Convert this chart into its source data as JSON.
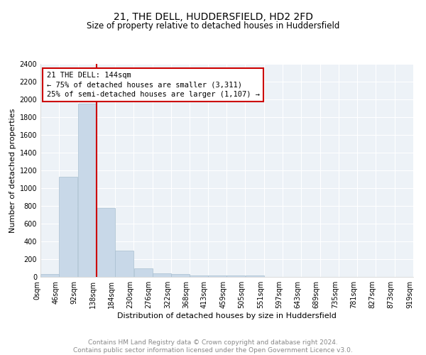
{
  "title": "21, THE DELL, HUDDERSFIELD, HD2 2FD",
  "subtitle": "Size of property relative to detached houses in Huddersfield",
  "xlabel": "Distribution of detached houses by size in Huddersfield",
  "ylabel": "Number of detached properties",
  "bar_color": "#c8d8e8",
  "bar_edge_color": "#a8bfd0",
  "vline_x": 138,
  "vline_color": "#cc0000",
  "annotation_line1": "21 THE DELL: 144sqm",
  "annotation_line2": "← 75% of detached houses are smaller (3,311)",
  "annotation_line3": "25% of semi-detached houses are larger (1,107) →",
  "annotation_box_color": "#cc0000",
  "bin_edges": [
    0,
    46,
    92,
    138,
    184,
    230,
    276,
    322,
    368,
    413,
    459,
    505,
    551,
    597,
    643,
    689,
    735,
    781,
    827,
    873,
    919
  ],
  "bar_heights": [
    30,
    1130,
    1950,
    775,
    300,
    100,
    40,
    30,
    20,
    20,
    20,
    15,
    0,
    0,
    0,
    0,
    0,
    0,
    0,
    0
  ],
  "ylim": [
    0,
    2400
  ],
  "yticks": [
    0,
    200,
    400,
    600,
    800,
    1000,
    1200,
    1400,
    1600,
    1800,
    2000,
    2200,
    2400
  ],
  "xtick_labels": [
    "0sqm",
    "46sqm",
    "92sqm",
    "138sqm",
    "184sqm",
    "230sqm",
    "276sqm",
    "322sqm",
    "368sqm",
    "413sqm",
    "459sqm",
    "505sqm",
    "551sqm",
    "597sqm",
    "643sqm",
    "689sqm",
    "735sqm",
    "781sqm",
    "827sqm",
    "873sqm",
    "919sqm"
  ],
  "footer_text": "Contains HM Land Registry data © Crown copyright and database right 2024.\nContains public sector information licensed under the Open Government Licence v3.0.",
  "background_color": "#edf2f7",
  "grid_color": "#ffffff",
  "title_fontsize": 10,
  "subtitle_fontsize": 8.5,
  "axis_label_fontsize": 8,
  "tick_fontsize": 7,
  "footer_fontsize": 6.5,
  "annot_fontsize": 7.5
}
